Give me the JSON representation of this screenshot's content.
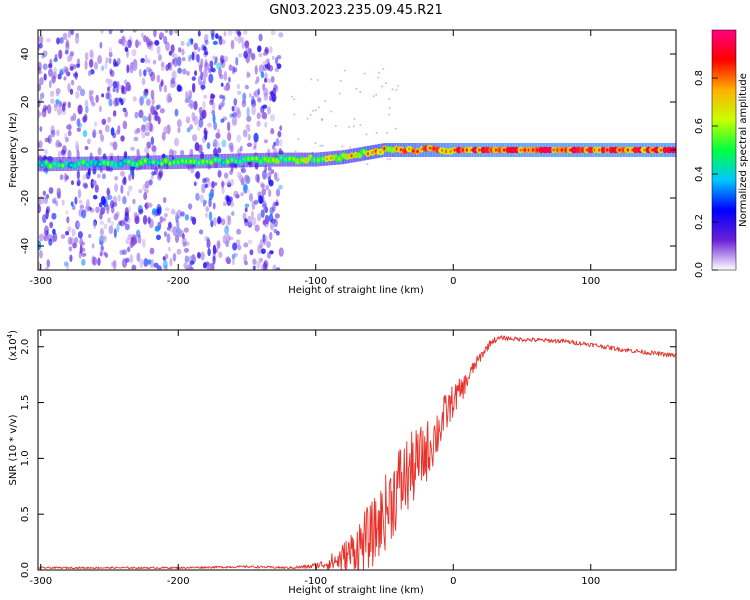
{
  "figure": {
    "title": "GN03.2023.235.09.45.R21"
  },
  "chart_data": [
    {
      "type": "heatmap",
      "name": "spectrogram",
      "xlabel": "Height of straight line (km)",
      "ylabel": "Frequency (Hz)",
      "xlim": [
        -302,
        162
      ],
      "ylim": [
        -50,
        50
      ],
      "xticks": [
        -300,
        -200,
        -100,
        0,
        100
      ],
      "yticks": [
        -40,
        -20,
        0,
        20,
        40
      ],
      "colorbar": {
        "label": "Normalized spectral amplitude",
        "range": [
          0,
          1
        ],
        "ticks": [
          "0.0",
          "0.2",
          "0.4",
          "0.6",
          "0.8"
        ],
        "colors": [
          "#ffffff",
          "#6a1fd6",
          "#0000ff",
          "#00c8ff",
          "#00ff40",
          "#c8ff00",
          "#ffb000",
          "#ff0000",
          "#ff0080"
        ]
      },
      "ridge": {
        "description_points": [
          [
            -300,
            -6
          ],
          [
            -200,
            -5
          ],
          [
            -130,
            -4
          ],
          [
            -100,
            -4
          ],
          [
            -80,
            -3
          ],
          [
            -60,
            -1
          ],
          [
            -50,
            0
          ],
          [
            0,
            0
          ],
          [
            160,
            0
          ]
        ],
        "band_amplitude": [
          [
            -300,
            0.45
          ],
          [
            -150,
            0.5
          ],
          [
            -90,
            0.6
          ],
          [
            -40,
            0.8
          ],
          [
            20,
            0.9
          ],
          [
            160,
            0.9
          ]
        ]
      },
      "noise_extent": [
        -302,
        -125
      ]
    },
    {
      "type": "line",
      "name": "snr",
      "xlabel": "Height of straight line (km)",
      "ylabel": "SNR (10 * v/v)",
      "yscale_label": "(x10",
      "yscale_exp": "4",
      "xlim": [
        -302,
        162
      ],
      "ylim": [
        0,
        2.15
      ],
      "xticks": [
        -300,
        -200,
        -100,
        0,
        100
      ],
      "yticks": [
        0.0,
        0.5,
        1.0,
        1.5,
        2.0
      ],
      "ytick_labels": [
        "0.0",
        "0.5",
        "1.0",
        "1.5",
        "2.0"
      ],
      "color": "#e8312a",
      "series": [
        {
          "x": [
            -302,
            -250,
            -200,
            -150,
            -120,
            -105,
            -95,
            -85,
            -78,
            -72,
            -65,
            -58,
            -52,
            -46,
            -40,
            -33,
            -27,
            -20,
            -13,
            -6,
            0,
            8,
            15,
            22,
            28,
            35,
            45,
            60,
            80,
            100,
            120,
            140,
            162
          ],
          "y": [
            0.02,
            0.02,
            0.02,
            0.03,
            0.02,
            0.03,
            0.05,
            0.08,
            0.12,
            0.18,
            0.25,
            0.33,
            0.45,
            0.6,
            0.75,
            0.85,
            0.95,
            1.05,
            1.2,
            1.38,
            1.52,
            1.65,
            1.82,
            1.95,
            2.05,
            2.08,
            2.07,
            2.06,
            2.05,
            2.02,
            1.98,
            1.95,
            1.92
          ],
          "noise": [
            0.008,
            0.008,
            0.008,
            0.01,
            0.01,
            0.02,
            0.04,
            0.1,
            0.16,
            0.22,
            0.28,
            0.3,
            0.32,
            0.36,
            0.38,
            0.36,
            0.32,
            0.28,
            0.24,
            0.2,
            0.14,
            0.1,
            0.06,
            0.04,
            0.03,
            0.02,
            0.02,
            0.02,
            0.02,
            0.02,
            0.02,
            0.02,
            0.02
          ]
        }
      ]
    }
  ]
}
